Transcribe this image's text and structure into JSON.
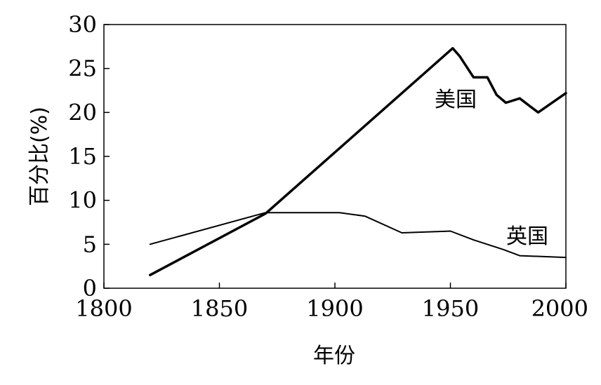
{
  "chart_data": {
    "type": "line",
    "xlabel": "年份",
    "ylabel": "百分比(%)",
    "xlim": [
      1800,
      2000
    ],
    "ylim": [
      0,
      30
    ],
    "xticks": [
      1800,
      1850,
      1900,
      1950,
      2000
    ],
    "yticks": [
      0,
      5,
      10,
      15,
      20,
      25,
      30
    ],
    "grid": false,
    "series": [
      {
        "name": "美国",
        "stroke_width": 3.5,
        "x": [
          1820,
          1870,
          1951,
          1954,
          1960,
          1966,
          1970,
          1974,
          1980,
          1988,
          2000
        ],
        "y": [
          1.5,
          8.5,
          27.3,
          26.4,
          24.0,
          24.0,
          22.0,
          21.1,
          21.6,
          20.0,
          22.2
        ]
      },
      {
        "name": "英国",
        "stroke_width": 2,
        "x": [
          1820,
          1870,
          1902,
          1913,
          1929,
          1950,
          1960,
          1973,
          1980,
          2000
        ],
        "y": [
          5.0,
          8.6,
          8.6,
          8.2,
          6.3,
          6.5,
          5.5,
          4.4,
          3.7,
          3.5
        ]
      }
    ]
  }
}
